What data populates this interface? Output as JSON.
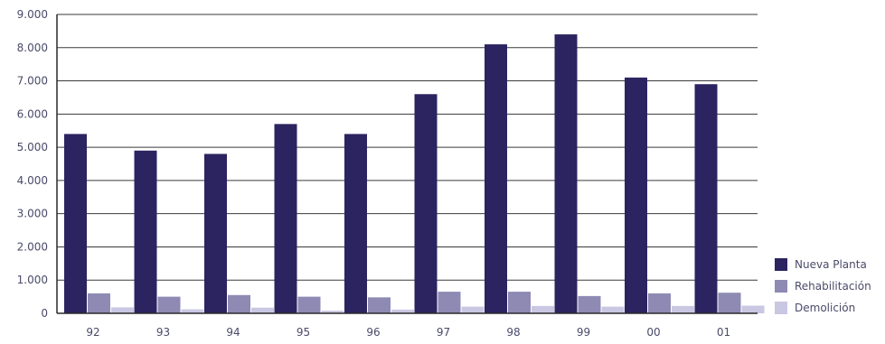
{
  "chart_data": {
    "type": "bar",
    "categories": [
      "92",
      "93",
      "94",
      "95",
      "96",
      "97",
      "98",
      "99",
      "00",
      "01"
    ],
    "series": [
      {
        "name": "Nueva Planta",
        "color": "#2b2460",
        "values": [
          5400,
          4900,
          4800,
          5700,
          5400,
          6600,
          8100,
          8400,
          7100,
          6900
        ]
      },
      {
        "name": "Rehabilitación",
        "color": "#8e8ab4",
        "values": [
          600,
          500,
          550,
          500,
          480,
          650,
          650,
          520,
          600,
          620
        ]
      },
      {
        "name": "Demolición",
        "color": "#c9c7e2",
        "values": [
          180,
          120,
          170,
          80,
          110,
          200,
          220,
          200,
          220,
          230
        ]
      }
    ],
    "yticks": [
      "0",
      "1.000",
      "2.000",
      "3.000",
      "4.000",
      "5.000",
      "6.000",
      "7.000",
      "8.000",
      "9.000"
    ],
    "ylim": [
      0,
      9000
    ],
    "grid": true,
    "legend_position": "right-bottom",
    "title": "",
    "xlabel": "",
    "ylabel": ""
  }
}
